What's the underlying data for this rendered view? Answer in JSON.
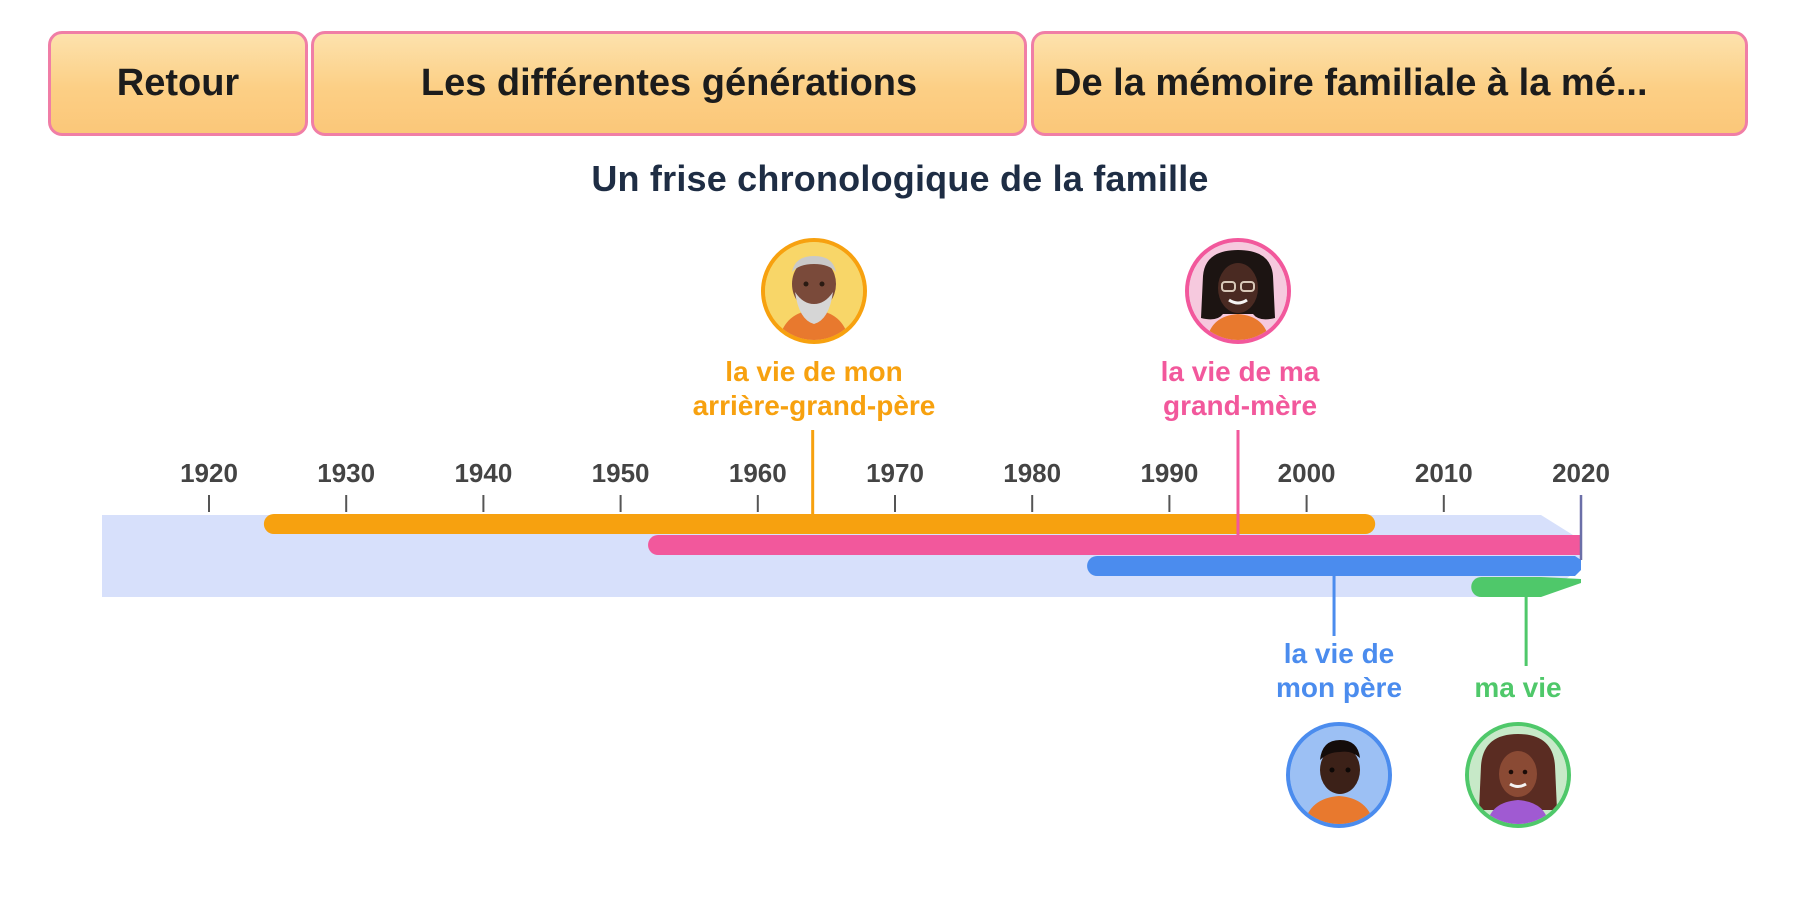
{
  "nav": {
    "back_label": "Retour",
    "generations_label": "Les différentes générations",
    "memory_label": "De la mémoire familiale à la mé..."
  },
  "page_title": "Un frise chronologique de la famille",
  "colors": {
    "great_grandfather": "#f7a10f",
    "grandmother": "#f2589c",
    "father": "#4b8cee",
    "me": "#4fc86a",
    "band": "#d7e0fb",
    "axis": "#555555"
  },
  "people": {
    "great_grandfather": {
      "label_line1": "la vie de mon",
      "label_line2": "arrière-grand-père",
      "icon": "elderly-man-portrait"
    },
    "grandmother": {
      "label_line1": "la vie de ma",
      "label_line2": "grand-mère",
      "icon": "woman-with-glasses-portrait"
    },
    "father": {
      "label_line1": "la vie de",
      "label_line2": "mon père",
      "icon": "man-portrait"
    },
    "me": {
      "label_line1": "ma vie",
      "icon": "girl-portrait"
    }
  },
  "chart_data": {
    "type": "timeline",
    "x_ticks": [
      1920,
      1930,
      1940,
      1950,
      1960,
      1970,
      1980,
      1990,
      2000,
      2010,
      2020
    ],
    "xlim": [
      1912,
      2020
    ],
    "series": [
      {
        "name": "la vie de mon arrière-grand-père",
        "start": 1924,
        "end": 2005,
        "marker": 1964
      },
      {
        "name": "la vie de ma grand-mère",
        "start": 1952,
        "end": 2020,
        "marker": 1995
      },
      {
        "name": "la vie de mon père",
        "start": 1984,
        "end": 2020,
        "marker": 2002
      },
      {
        "name": "ma vie",
        "start": 2012,
        "end": 2020,
        "marker": 2016
      }
    ]
  }
}
